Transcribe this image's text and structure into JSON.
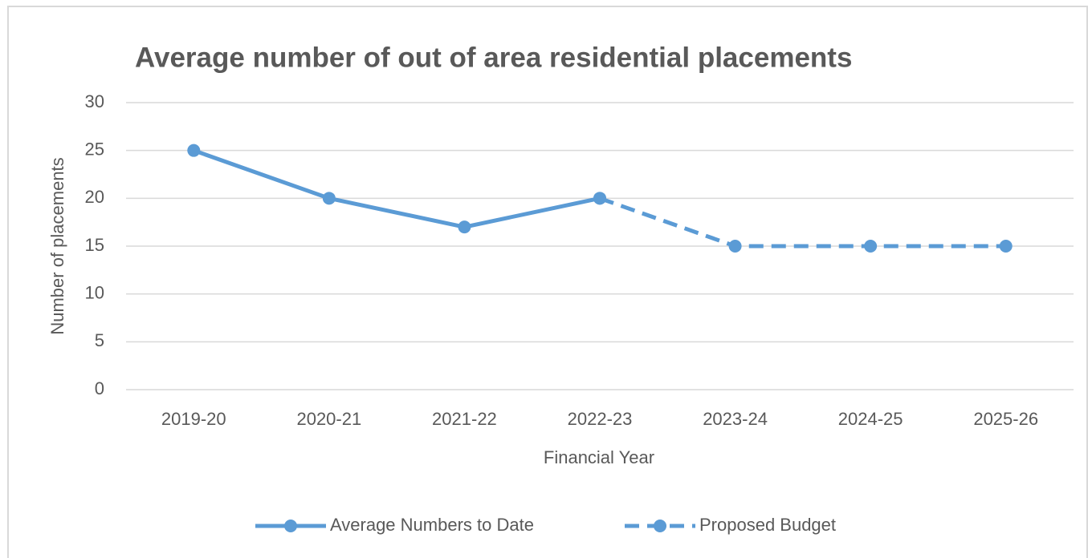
{
  "chart_data": {
    "type": "line",
    "title": "Average number of out of area residential placements",
    "x_label": "Financial Year",
    "y_label": "Number of placements",
    "categories": [
      "2019-20",
      "2020-21",
      "2021-22",
      "2022-23",
      "2023-24",
      "2024-25",
      "2025-26"
    ],
    "series": [
      {
        "name": "Average Numbers to Date",
        "color": "#5b9bd5",
        "dash": false,
        "values": [
          25,
          20,
          17,
          20,
          null,
          null,
          null
        ]
      },
      {
        "name": "Proposed Budget",
        "color": "#5b9bd5",
        "dash": true,
        "values": [
          null,
          null,
          null,
          20,
          15,
          15,
          15
        ]
      }
    ],
    "ylim": [
      0,
      30
    ],
    "yticks": [
      0,
      5,
      10,
      15,
      20,
      25,
      30
    ],
    "grid": true,
    "legend": "bottom"
  }
}
